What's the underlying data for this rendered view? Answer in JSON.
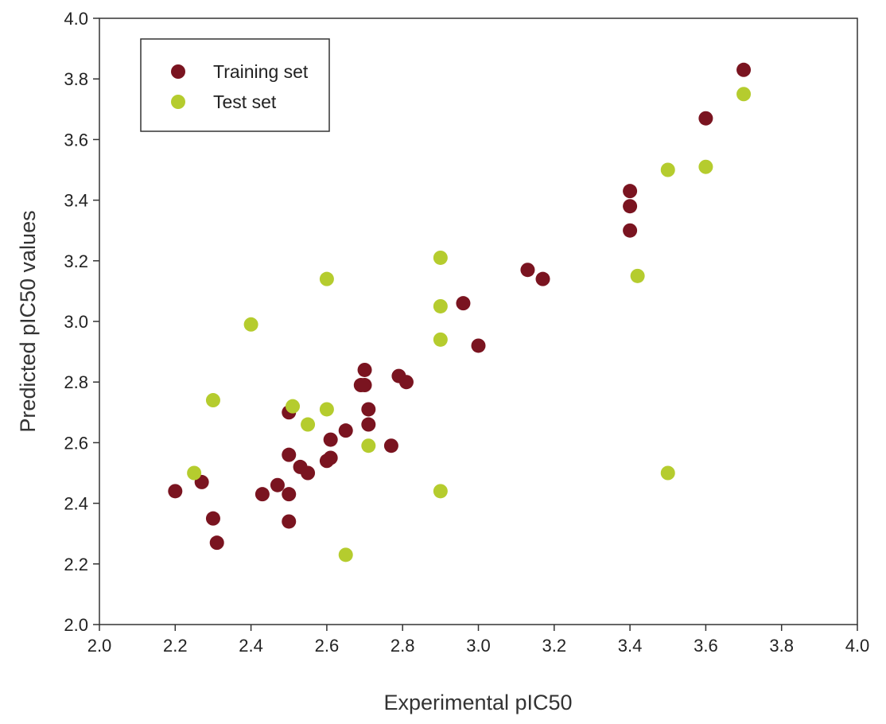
{
  "chart_data": {
    "type": "scatter",
    "title": "",
    "xlabel": "Experimental pIC50",
    "ylabel": "Predicted pIC50 values",
    "xlim": [
      2.0,
      4.0
    ],
    "ylim": [
      2.0,
      4.0
    ],
    "x_ticks": [
      "2.0",
      "2.2",
      "2.4",
      "2.6",
      "2.8",
      "3.0",
      "3.2",
      "3.4",
      "3.6",
      "3.8",
      "4.0"
    ],
    "y_ticks": [
      "2.0",
      "2.2",
      "2.4",
      "2.6",
      "2.8",
      "3.0",
      "3.2",
      "3.4",
      "3.6",
      "3.8",
      "4.0"
    ],
    "grid": false,
    "legend_position": "top-left",
    "series": [
      {
        "name": "Training set",
        "color": "#7a1420",
        "points": [
          [
            2.2,
            2.44
          ],
          [
            2.27,
            2.47
          ],
          [
            2.3,
            2.35
          ],
          [
            2.31,
            2.27
          ],
          [
            2.43,
            2.43
          ],
          [
            2.47,
            2.46
          ],
          [
            2.5,
            2.43
          ],
          [
            2.5,
            2.34
          ],
          [
            2.5,
            2.56
          ],
          [
            2.5,
            2.7
          ],
          [
            2.53,
            2.52
          ],
          [
            2.55,
            2.5
          ],
          [
            2.6,
            2.54
          ],
          [
            2.61,
            2.55
          ],
          [
            2.61,
            2.61
          ],
          [
            2.65,
            2.64
          ],
          [
            2.69,
            2.79
          ],
          [
            2.7,
            2.84
          ],
          [
            2.7,
            2.79
          ],
          [
            2.71,
            2.71
          ],
          [
            2.71,
            2.66
          ],
          [
            2.77,
            2.59
          ],
          [
            2.79,
            2.82
          ],
          [
            2.81,
            2.8
          ],
          [
            2.96,
            3.06
          ],
          [
            3.0,
            2.92
          ],
          [
            3.13,
            3.17
          ],
          [
            3.17,
            3.14
          ],
          [
            3.4,
            3.43
          ],
          [
            3.4,
            3.38
          ],
          [
            3.4,
            3.3
          ],
          [
            3.6,
            3.67
          ],
          [
            3.7,
            3.83
          ]
        ]
      },
      {
        "name": "Test set",
        "color": "#b5cc2e",
        "points": [
          [
            2.25,
            2.5
          ],
          [
            2.3,
            2.74
          ],
          [
            2.4,
            2.99
          ],
          [
            2.51,
            2.72
          ],
          [
            2.55,
            2.66
          ],
          [
            2.6,
            3.14
          ],
          [
            2.6,
            2.71
          ],
          [
            2.65,
            2.23
          ],
          [
            2.71,
            2.59
          ],
          [
            2.9,
            3.21
          ],
          [
            2.9,
            3.05
          ],
          [
            2.9,
            2.94
          ],
          [
            2.9,
            2.44
          ],
          [
            3.42,
            3.15
          ],
          [
            3.5,
            3.5
          ],
          [
            3.5,
            2.5
          ],
          [
            3.6,
            3.51
          ],
          [
            3.7,
            3.75
          ]
        ]
      }
    ]
  }
}
